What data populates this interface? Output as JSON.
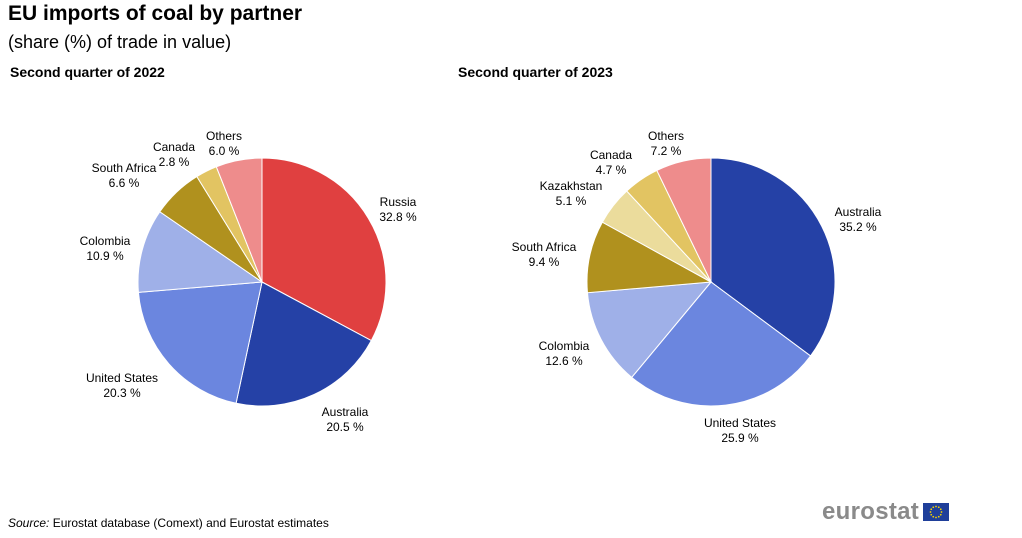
{
  "title": "EU imports of coal by partner",
  "subtitle": "(share (%) of trade in value)",
  "source_label": "Source:",
  "source_text": " Eurostat database (Comext) and Eurostat estimates",
  "logo_text": "eurostat",
  "chart_data": [
    {
      "type": "pie",
      "title": "Second quarter of 2022",
      "slices": [
        {
          "label": "Russia",
          "value": 32.8,
          "value_label": "32.8 %",
          "color": "#e04040"
        },
        {
          "label": "Australia",
          "value": 20.5,
          "value_label": "20.5 %",
          "color": "#2541a6"
        },
        {
          "label": "United States",
          "value": 20.3,
          "value_label": "20.3 %",
          "color": "#6b86df"
        },
        {
          "label": "Colombia",
          "value": 10.9,
          "value_label": "10.9 %",
          "color": "#9fb0e8"
        },
        {
          "label": "South Africa",
          "value": 6.6,
          "value_label": "6.6 %",
          "color": "#b0911e"
        },
        {
          "label": "Canada",
          "value": 2.8,
          "value_label": "2.8 %",
          "color": "#e2c462"
        },
        {
          "label": "Others",
          "value": 6.0,
          "value_label": "6.0 %",
          "color": "#ee8c8c"
        }
      ]
    },
    {
      "type": "pie",
      "title": "Second quarter of 2023",
      "slices": [
        {
          "label": "Australia",
          "value": 35.2,
          "value_label": "35.2 %",
          "color": "#2541a6"
        },
        {
          "label": "United States",
          "value": 25.9,
          "value_label": "25.9 %",
          "color": "#6b86df"
        },
        {
          "label": "Colombia",
          "value": 12.6,
          "value_label": "12.6 %",
          "color": "#9fb0e8"
        },
        {
          "label": "South Africa",
          "value": 9.4,
          "value_label": "9.4 %",
          "color": "#b0911e"
        },
        {
          "label": "Kazakhstan",
          "value": 5.1,
          "value_label": "5.1 %",
          "color": "#ebdc9c"
        },
        {
          "label": "Canada",
          "value": 4.7,
          "value_label": "4.7 %",
          "color": "#e2c462"
        },
        {
          "label": "Others",
          "value": 7.2,
          "value_label": "7.2 %",
          "color": "#ee8c8c"
        }
      ]
    }
  ]
}
